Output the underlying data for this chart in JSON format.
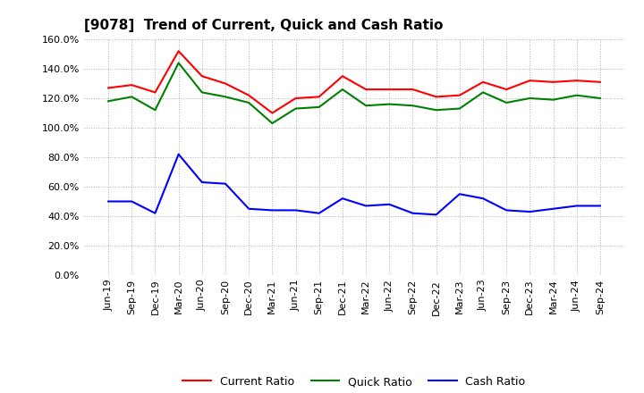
{
  "title": "[9078]  Trend of Current, Quick and Cash Ratio",
  "labels": [
    "Jun-19",
    "Sep-19",
    "Dec-19",
    "Mar-20",
    "Jun-20",
    "Sep-20",
    "Dec-20",
    "Mar-21",
    "Jun-21",
    "Sep-21",
    "Dec-21",
    "Mar-22",
    "Jun-22",
    "Sep-22",
    "Dec-22",
    "Mar-23",
    "Jun-23",
    "Sep-23",
    "Dec-23",
    "Mar-24",
    "Jun-24",
    "Sep-24"
  ],
  "current_ratio": [
    127,
    129,
    124,
    152,
    135,
    130,
    122,
    110,
    120,
    121,
    135,
    126,
    126,
    126,
    121,
    122,
    131,
    126,
    132,
    131,
    132,
    131
  ],
  "quick_ratio": [
    118,
    121,
    112,
    144,
    124,
    121,
    117,
    103,
    113,
    114,
    126,
    115,
    116,
    115,
    112,
    113,
    124,
    117,
    120,
    119,
    122,
    120
  ],
  "cash_ratio": [
    50,
    50,
    42,
    82,
    63,
    62,
    45,
    44,
    44,
    42,
    52,
    47,
    48,
    42,
    41,
    55,
    52,
    44,
    43,
    45,
    47,
    47
  ],
  "current_color": "#ff0000",
  "quick_color": "#008000",
  "cash_color": "#0000ff",
  "ylim": [
    0,
    160
  ],
  "yticks": [
    0,
    20,
    40,
    60,
    80,
    100,
    120,
    140,
    160
  ],
  "background_color": "#ffffff",
  "grid_color": "#b0b0b0",
  "title_fontsize": 11,
  "tick_fontsize": 8,
  "line_width": 1.5
}
